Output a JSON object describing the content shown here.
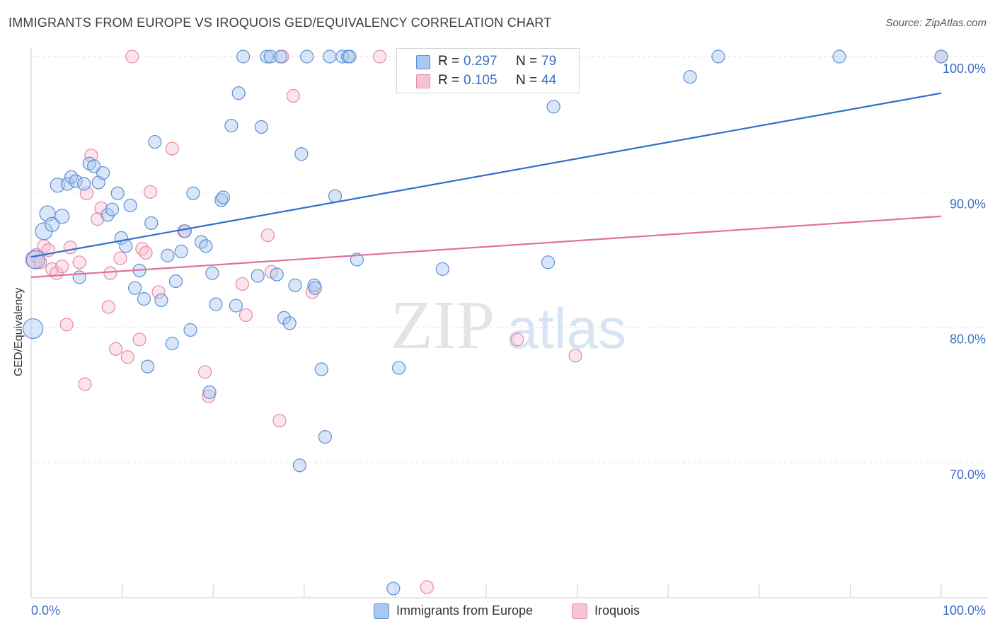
{
  "title": "IMMIGRANTS FROM EUROPE VS IROQUOIS GED/EQUIVALENCY CORRELATION CHART",
  "source": "Source: ZipAtlas.com",
  "watermark": {
    "zip": "ZIP",
    "atlas": "atlas"
  },
  "colors": {
    "blue_fill": "#a9c8f0",
    "blue_stroke": "#5b8fd6",
    "blue_line": "#2f6fcb",
    "pink_fill": "#f6c3d3",
    "pink_stroke": "#e48aa8",
    "pink_line": "#e0709a",
    "grid": "#e2e2e2",
    "tick_label": "#3a70c6"
  },
  "legend_stats": [
    {
      "r_label": "R =",
      "r_value": "0.297",
      "n_label": "N =",
      "n_value": "79",
      "color": "#a9c8f0"
    },
    {
      "r_label": "R =",
      "r_value": "0.105",
      "n_label": "N =",
      "n_value": "44",
      "color": "#f6c3d3"
    }
  ],
  "legend_series": [
    {
      "label": "Immigrants from Europe",
      "color": "#a9c8f0"
    },
    {
      "label": "Iroquois",
      "color": "#f6c3d3"
    }
  ],
  "chart_data": {
    "type": "scatter",
    "title": "IMMIGRANTS FROM EUROPE VS IROQUOIS GED/EQUIVALENCY CORRELATION CHART",
    "xlabel": "",
    "ylabel": "GED/Equivalency",
    "xlim": [
      0,
      100
    ],
    "ylim": [
      60.5,
      101.5
    ],
    "x_tick_labels": [
      "0.0%",
      "100.0%"
    ],
    "y_ticks": [
      70,
      80,
      90,
      100
    ],
    "y_tick_labels": [
      "70.0%",
      "80.0%",
      "90.0%",
      "100.0%"
    ],
    "grid": true,
    "legend_position": "top-center",
    "series": [
      {
        "name": "Immigrants from Europe",
        "r": 0.297,
        "n": 79,
        "trend": {
          "x": [
            0,
            100
          ],
          "y": [
            85.2,
            97.3
          ]
        },
        "points": [
          {
            "x": 0.2,
            "y": 79.9,
            "s": 14
          },
          {
            "x": 0.5,
            "y": 85.0,
            "s": 13
          },
          {
            "x": 1.4,
            "y": 87.1,
            "s": 12
          },
          {
            "x": 1.8,
            "y": 88.4,
            "s": 11
          },
          {
            "x": 2.3,
            "y": 87.6,
            "s": 10
          },
          {
            "x": 2.9,
            "y": 90.5,
            "s": 10
          },
          {
            "x": 3.4,
            "y": 88.2,
            "s": 10
          },
          {
            "x": 4.0,
            "y": 90.6,
            "s": 9
          },
          {
            "x": 4.4,
            "y": 91.1,
            "s": 9
          },
          {
            "x": 4.9,
            "y": 90.8,
            "s": 9
          },
          {
            "x": 5.3,
            "y": 83.7,
            "s": 9
          },
          {
            "x": 5.8,
            "y": 90.6,
            "s": 9
          },
          {
            "x": 6.4,
            "y": 92.1,
            "s": 9
          },
          {
            "x": 6.9,
            "y": 91.9,
            "s": 9
          },
          {
            "x": 7.4,
            "y": 90.7,
            "s": 9
          },
          {
            "x": 7.9,
            "y": 91.4,
            "s": 9
          },
          {
            "x": 8.4,
            "y": 88.3,
            "s": 9
          },
          {
            "x": 8.9,
            "y": 88.7,
            "s": 9
          },
          {
            "x": 9.5,
            "y": 89.9,
            "s": 9
          },
          {
            "x": 9.9,
            "y": 86.6,
            "s": 9
          },
          {
            "x": 10.4,
            "y": 86.0,
            "s": 9
          },
          {
            "x": 10.9,
            "y": 89.0,
            "s": 9
          },
          {
            "x": 11.4,
            "y": 82.9,
            "s": 9
          },
          {
            "x": 11.9,
            "y": 84.2,
            "s": 9
          },
          {
            "x": 12.4,
            "y": 82.1,
            "s": 9
          },
          {
            "x": 12.8,
            "y": 77.1,
            "s": 9
          },
          {
            "x": 13.2,
            "y": 87.7,
            "s": 9
          },
          {
            "x": 13.6,
            "y": 93.7,
            "s": 9
          },
          {
            "x": 14.3,
            "y": 82.0,
            "s": 9
          },
          {
            "x": 15.0,
            "y": 85.3,
            "s": 9
          },
          {
            "x": 15.5,
            "y": 78.8,
            "s": 9
          },
          {
            "x": 15.9,
            "y": 83.4,
            "s": 9
          },
          {
            "x": 16.5,
            "y": 85.6,
            "s": 9
          },
          {
            "x": 16.9,
            "y": 87.1,
            "s": 9
          },
          {
            "x": 17.5,
            "y": 79.8,
            "s": 9
          },
          {
            "x": 17.8,
            "y": 89.9,
            "s": 9
          },
          {
            "x": 18.7,
            "y": 86.3,
            "s": 9
          },
          {
            "x": 19.2,
            "y": 86.0,
            "s": 9
          },
          {
            "x": 19.6,
            "y": 75.2,
            "s": 9
          },
          {
            "x": 19.9,
            "y": 84.0,
            "s": 9
          },
          {
            "x": 20.3,
            "y": 81.7,
            "s": 9
          },
          {
            "x": 20.9,
            "y": 89.4,
            "s": 9
          },
          {
            "x": 21.1,
            "y": 89.6,
            "s": 9
          },
          {
            "x": 22.0,
            "y": 94.9,
            "s": 9
          },
          {
            "x": 22.5,
            "y": 81.6,
            "s": 9
          },
          {
            "x": 22.8,
            "y": 97.3,
            "s": 9
          },
          {
            "x": 23.3,
            "y": 100.0,
            "s": 9
          },
          {
            "x": 24.9,
            "y": 83.8,
            "s": 9
          },
          {
            "x": 25.3,
            "y": 94.8,
            "s": 9
          },
          {
            "x": 25.9,
            "y": 100.0,
            "s": 9
          },
          {
            "x": 26.3,
            "y": 100.0,
            "s": 9
          },
          {
            "x": 27.0,
            "y": 83.9,
            "s": 9
          },
          {
            "x": 27.4,
            "y": 100.0,
            "s": 9
          },
          {
            "x": 27.8,
            "y": 80.7,
            "s": 9
          },
          {
            "x": 28.4,
            "y": 80.3,
            "s": 9
          },
          {
            "x": 29.0,
            "y": 83.1,
            "s": 9
          },
          {
            "x": 29.5,
            "y": 69.8,
            "s": 9
          },
          {
            "x": 29.7,
            "y": 92.8,
            "s": 9
          },
          {
            "x": 30.3,
            "y": 100.0,
            "s": 9
          },
          {
            "x": 31.1,
            "y": 83.1,
            "s": 9
          },
          {
            "x": 31.2,
            "y": 82.9,
            "s": 9
          },
          {
            "x": 31.9,
            "y": 76.9,
            "s": 9
          },
          {
            "x": 32.3,
            "y": 71.9,
            "s": 9
          },
          {
            "x": 32.8,
            "y": 100.0,
            "s": 9
          },
          {
            "x": 33.4,
            "y": 89.7,
            "s": 9
          },
          {
            "x": 34.2,
            "y": 100.0,
            "s": 9
          },
          {
            "x": 34.8,
            "y": 100.0,
            "s": 9
          },
          {
            "x": 35.0,
            "y": 100.0,
            "s": 9
          },
          {
            "x": 35.8,
            "y": 85.0,
            "s": 9
          },
          {
            "x": 39.8,
            "y": 60.7,
            "s": 9
          },
          {
            "x": 40.4,
            "y": 77.0,
            "s": 9
          },
          {
            "x": 45.2,
            "y": 84.3,
            "s": 9
          },
          {
            "x": 49.9,
            "y": 100.0,
            "s": 9
          },
          {
            "x": 56.8,
            "y": 84.8,
            "s": 9
          },
          {
            "x": 57.4,
            "y": 96.3,
            "s": 9
          },
          {
            "x": 72.4,
            "y": 98.5,
            "s": 9
          },
          {
            "x": 75.5,
            "y": 100.0,
            "s": 9
          },
          {
            "x": 88.8,
            "y": 100.0,
            "s": 9
          },
          {
            "x": 100.0,
            "y": 100.0,
            "s": 9
          }
        ]
      },
      {
        "name": "Iroquois",
        "r": 0.105,
        "n": 44,
        "trend": {
          "x": [
            0,
            100
          ],
          "y": [
            83.7,
            88.2
          ]
        },
        "points": [
          {
            "x": 0.3,
            "y": 85.0,
            "s": 12
          },
          {
            "x": 0.6,
            "y": 85.3,
            "s": 10
          },
          {
            "x": 1.0,
            "y": 84.8,
            "s": 9
          },
          {
            "x": 1.4,
            "y": 86.0,
            "s": 9
          },
          {
            "x": 1.9,
            "y": 85.7,
            "s": 9
          },
          {
            "x": 2.3,
            "y": 84.3,
            "s": 9
          },
          {
            "x": 2.8,
            "y": 84.0,
            "s": 9
          },
          {
            "x": 3.4,
            "y": 84.5,
            "s": 9
          },
          {
            "x": 3.9,
            "y": 80.2,
            "s": 9
          },
          {
            "x": 4.3,
            "y": 85.9,
            "s": 9
          },
          {
            "x": 5.3,
            "y": 84.8,
            "s": 9
          },
          {
            "x": 5.9,
            "y": 75.8,
            "s": 9
          },
          {
            "x": 6.1,
            "y": 89.9,
            "s": 9
          },
          {
            "x": 6.6,
            "y": 92.7,
            "s": 9
          },
          {
            "x": 7.3,
            "y": 88.0,
            "s": 9
          },
          {
            "x": 7.7,
            "y": 88.8,
            "s": 9
          },
          {
            "x": 8.5,
            "y": 81.5,
            "s": 9
          },
          {
            "x": 8.7,
            "y": 84.0,
            "s": 9
          },
          {
            "x": 9.3,
            "y": 78.4,
            "s": 9
          },
          {
            "x": 9.8,
            "y": 85.1,
            "s": 9
          },
          {
            "x": 10.6,
            "y": 77.8,
            "s": 9
          },
          {
            "x": 11.1,
            "y": 100.0,
            "s": 9
          },
          {
            "x": 11.9,
            "y": 79.1,
            "s": 9
          },
          {
            "x": 12.2,
            "y": 85.8,
            "s": 9
          },
          {
            "x": 12.6,
            "y": 85.5,
            "s": 9
          },
          {
            "x": 13.1,
            "y": 90.0,
            "s": 9
          },
          {
            "x": 14.0,
            "y": 82.6,
            "s": 9
          },
          {
            "x": 15.5,
            "y": 93.2,
            "s": 9
          },
          {
            "x": 16.8,
            "y": 87.1,
            "s": 9
          },
          {
            "x": 19.1,
            "y": 76.7,
            "s": 9
          },
          {
            "x": 19.5,
            "y": 74.9,
            "s": 9
          },
          {
            "x": 23.2,
            "y": 83.2,
            "s": 9
          },
          {
            "x": 23.6,
            "y": 80.9,
            "s": 9
          },
          {
            "x": 26.0,
            "y": 86.8,
            "s": 9
          },
          {
            "x": 26.4,
            "y": 84.1,
            "s": 9
          },
          {
            "x": 27.3,
            "y": 73.1,
            "s": 9
          },
          {
            "x": 27.6,
            "y": 100.0,
            "s": 9
          },
          {
            "x": 28.8,
            "y": 97.1,
            "s": 9
          },
          {
            "x": 30.9,
            "y": 82.6,
            "s": 9
          },
          {
            "x": 38.3,
            "y": 100.0,
            "s": 9
          },
          {
            "x": 43.5,
            "y": 60.8,
            "s": 9
          },
          {
            "x": 53.4,
            "y": 79.1,
            "s": 9
          },
          {
            "x": 59.8,
            "y": 77.9,
            "s": 9
          },
          {
            "x": 100.0,
            "y": 100.0,
            "s": 9
          }
        ]
      }
    ]
  }
}
